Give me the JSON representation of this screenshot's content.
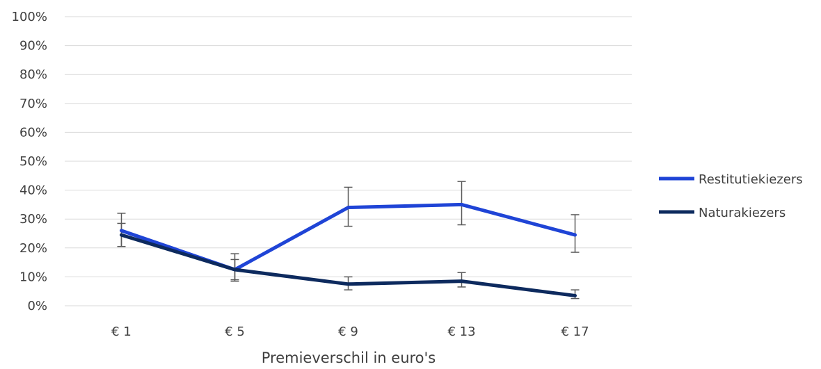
{
  "chart_data": {
    "type": "line",
    "title": "",
    "xlabel": "Premieverschil in euro's",
    "ylabel": "",
    "categories": [
      "€ 1",
      "€ 5",
      "€ 9",
      "€ 13",
      "€ 17"
    ],
    "ylim": [
      0,
      100
    ],
    "yticks": [
      "0%",
      "10%",
      "20%",
      "30%",
      "40%",
      "50%",
      "60%",
      "70%",
      "80%",
      "90%",
      "100%"
    ],
    "grid": true,
    "legend_position": "right",
    "series": [
      {
        "name": "Restitutiekiezers",
        "color": "#1F44D6",
        "values": [
          26,
          12.5,
          34,
          35,
          24.5
        ],
        "error_low": [
          20.5,
          9,
          27.5,
          28,
          18.5
        ],
        "error_high": [
          32,
          18,
          41,
          43,
          31.5
        ]
      },
      {
        "name": "Naturakiezers",
        "color": "#0D2A5E",
        "values": [
          24.5,
          12.5,
          7.5,
          8.5,
          3.5
        ],
        "error_low": [
          20.5,
          8.5,
          5.5,
          6.5,
          2.5
        ],
        "error_high": [
          28.5,
          16,
          10,
          11.5,
          5.5
        ]
      }
    ]
  }
}
